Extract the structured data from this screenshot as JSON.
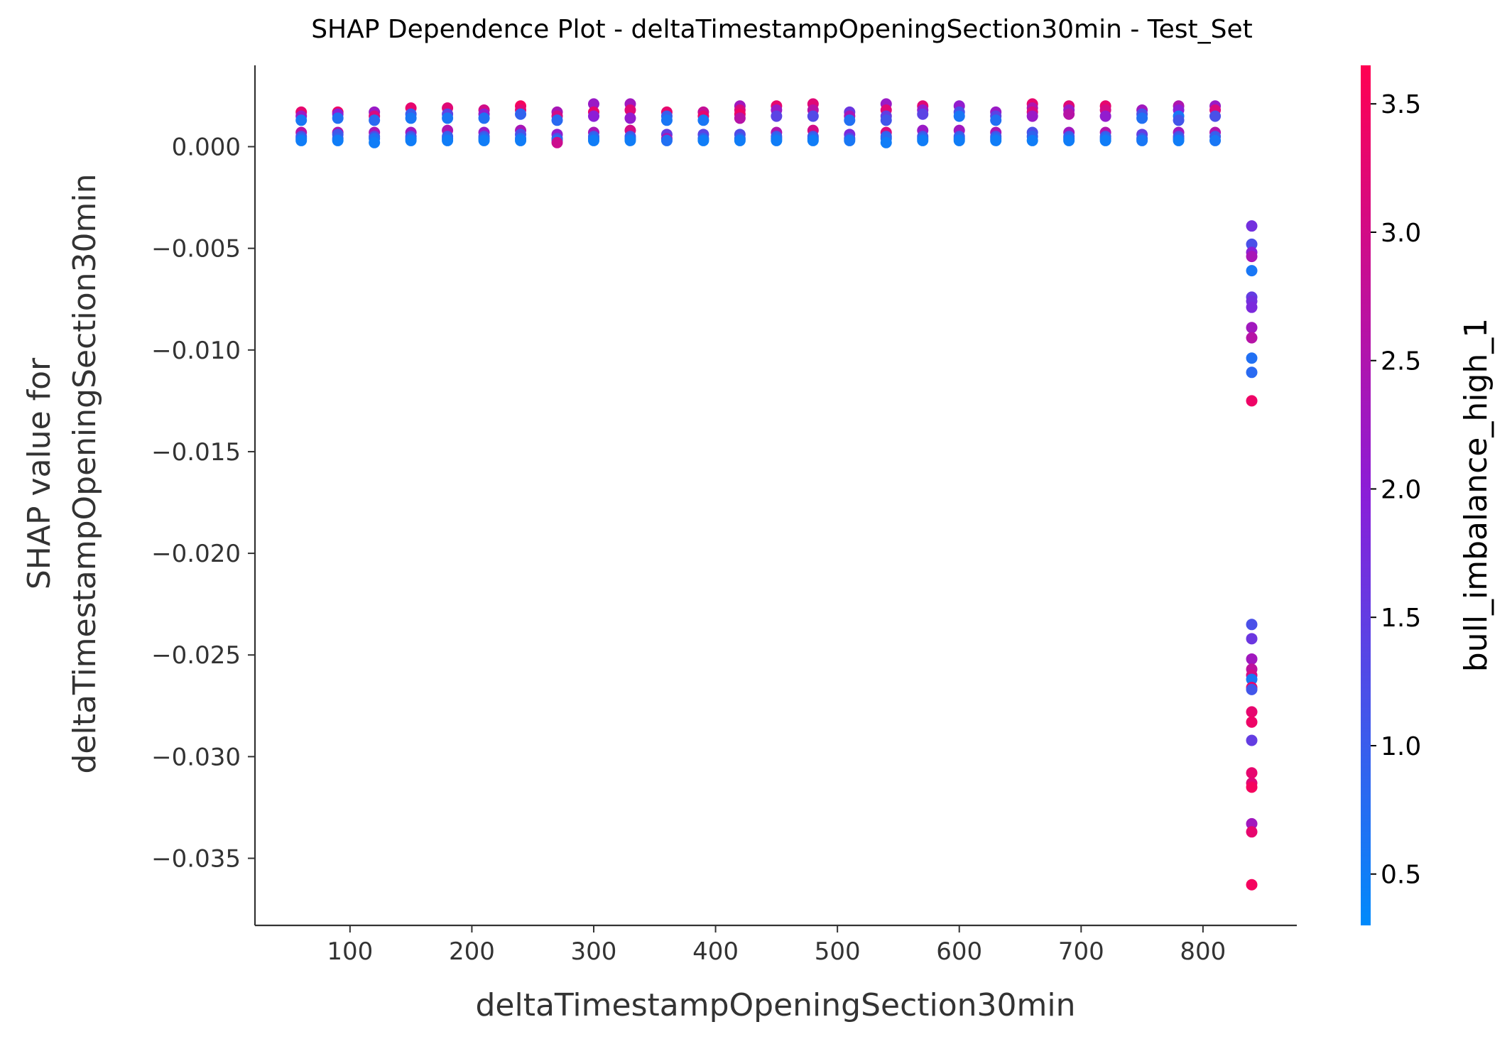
{
  "chart_data": {
    "type": "scatter",
    "title": "SHAP Dependence Plot - deltaTimestampOpeningSection30min - Test_Set",
    "xlabel": "deltaTimestampOpeningSection30min",
    "ylabel_line1": "SHAP value for",
    "ylabel_line2": "deltaTimestampOpeningSection30min",
    "colorbar_label": "bull_imbalance_high_1",
    "xlim": [
      22,
      877
    ],
    "ylim": [
      -0.0383,
      0.004
    ],
    "x_ticks": [
      100,
      200,
      300,
      400,
      500,
      600,
      700,
      800
    ],
    "x_tick_labels": [
      "100",
      "200",
      "300",
      "400",
      "500",
      "600",
      "700",
      "800"
    ],
    "y_ticks": [
      0.0,
      -0.005,
      -0.01,
      -0.015,
      -0.02,
      -0.025,
      -0.03,
      -0.035
    ],
    "y_tick_labels": [
      "0.000",
      "−0.005",
      "−0.010",
      "−0.015",
      "−0.020",
      "−0.025",
      "−0.030",
      "−0.035"
    ],
    "colorbar_range": [
      0.3,
      3.65
    ],
    "colorbar_ticks": [
      0.5,
      1.0,
      1.5,
      2.0,
      2.5,
      3.0,
      3.5
    ],
    "colorbar_tick_labels": [
      "0.5",
      "1.0",
      "1.5",
      "2.0",
      "2.5",
      "3.0",
      "3.5"
    ],
    "colormap": [
      "#008afb",
      "#ff0052"
    ],
    "grid": false,
    "points": [
      [
        60,
        0.0017,
        3.3
      ],
      [
        60,
        0.0015,
        2.2
      ],
      [
        60,
        0.0013,
        0.6
      ],
      [
        60,
        0.0007,
        2.6
      ],
      [
        60,
        0.0005,
        1.2
      ],
      [
        60,
        0.0004,
        0.8
      ],
      [
        60,
        0.0003,
        0.5
      ],
      [
        90,
        0.0017,
        3.4
      ],
      [
        90,
        0.0016,
        2.0
      ],
      [
        90,
        0.0014,
        0.7
      ],
      [
        90,
        0.0007,
        2.5
      ],
      [
        90,
        0.0006,
        1.1
      ],
      [
        90,
        0.0004,
        0.9
      ],
      [
        90,
        0.0003,
        0.5
      ],
      [
        120,
        0.0017,
        2.2
      ],
      [
        120,
        0.0015,
        3.1
      ],
      [
        120,
        0.0013,
        0.8
      ],
      [
        120,
        0.0007,
        2.4
      ],
      [
        120,
        0.0005,
        1.3
      ],
      [
        120,
        0.0004,
        0.7
      ],
      [
        120,
        0.0002,
        0.5
      ],
      [
        150,
        0.0019,
        3.3
      ],
      [
        150,
        0.0016,
        1.0
      ],
      [
        150,
        0.0014,
        0.6
      ],
      [
        150,
        0.0007,
        2.3
      ],
      [
        150,
        0.0005,
        1.2
      ],
      [
        150,
        0.0004,
        0.8
      ],
      [
        150,
        0.0003,
        0.5
      ],
      [
        180,
        0.0019,
        3.2
      ],
      [
        180,
        0.0016,
        1.4
      ],
      [
        180,
        0.0014,
        0.6
      ],
      [
        180,
        0.0008,
        2.5
      ],
      [
        180,
        0.0005,
        1.0
      ],
      [
        180,
        0.0004,
        0.8
      ],
      [
        180,
        0.0003,
        0.5
      ],
      [
        210,
        0.0018,
        3.0
      ],
      [
        210,
        0.0016,
        2.1
      ],
      [
        210,
        0.0014,
        0.7
      ],
      [
        210,
        0.0007,
        2.2
      ],
      [
        210,
        0.0005,
        1.1
      ],
      [
        210,
        0.0004,
        0.8
      ],
      [
        210,
        0.0003,
        0.5
      ],
      [
        240,
        0.002,
        3.5
      ],
      [
        240,
        0.0018,
        3.2
      ],
      [
        240,
        0.0016,
        0.9
      ],
      [
        240,
        0.0008,
        2.4
      ],
      [
        240,
        0.0006,
        1.2
      ],
      [
        240,
        0.0004,
        0.7
      ],
      [
        240,
        0.0003,
        0.5
      ],
      [
        270,
        0.0017,
        2.4
      ],
      [
        270,
        0.0015,
        3.0
      ],
      [
        270,
        0.0013,
        0.8
      ],
      [
        270,
        0.0006,
        2.1
      ],
      [
        270,
        0.0004,
        1.2
      ],
      [
        270,
        0.0003,
        0.7
      ],
      [
        270,
        0.0002,
        2.9
      ],
      [
        300,
        0.0021,
        2.2
      ],
      [
        300,
        0.0017,
        3.3
      ],
      [
        300,
        0.0015,
        2.0
      ],
      [
        300,
        0.0007,
        2.4
      ],
      [
        300,
        0.0005,
        1.0
      ],
      [
        300,
        0.0004,
        0.8
      ],
      [
        300,
        0.0003,
        0.5
      ],
      [
        330,
        0.0021,
        2.3
      ],
      [
        330,
        0.0018,
        3.2
      ],
      [
        330,
        0.0014,
        2.1
      ],
      [
        330,
        0.0008,
        3.0
      ],
      [
        330,
        0.0005,
        1.1
      ],
      [
        330,
        0.0004,
        0.8
      ],
      [
        330,
        0.0003,
        0.5
      ],
      [
        360,
        0.0017,
        3.3
      ],
      [
        360,
        0.0015,
        1.0
      ],
      [
        360,
        0.0013,
        0.6
      ],
      [
        360,
        0.0006,
        1.5
      ],
      [
        360,
        0.0004,
        2.4
      ],
      [
        360,
        0.0003,
        0.7
      ],
      [
        390,
        0.0017,
        2.8
      ],
      [
        390,
        0.0015,
        3.3
      ],
      [
        390,
        0.0013,
        0.6
      ],
      [
        390,
        0.0006,
        1.4
      ],
      [
        390,
        0.0004,
        0.9
      ],
      [
        390,
        0.0003,
        0.5
      ],
      [
        420,
        0.002,
        2.3
      ],
      [
        420,
        0.0018,
        3.1
      ],
      [
        420,
        0.0016,
        3.4
      ],
      [
        420,
        0.0014,
        2.6
      ],
      [
        420,
        0.0006,
        1.3
      ],
      [
        420,
        0.0004,
        0.9
      ],
      [
        420,
        0.0003,
        0.5
      ],
      [
        450,
        0.002,
        3.3
      ],
      [
        450,
        0.0018,
        2.2
      ],
      [
        450,
        0.0015,
        1.4
      ],
      [
        450,
        0.0007,
        2.5
      ],
      [
        450,
        0.0005,
        1.0
      ],
      [
        450,
        0.0004,
        0.8
      ],
      [
        450,
        0.0003,
        0.5
      ],
      [
        480,
        0.0021,
        3.2
      ],
      [
        480,
        0.0018,
        2.6
      ],
      [
        480,
        0.0015,
        1.3
      ],
      [
        480,
        0.0008,
        3.0
      ],
      [
        480,
        0.0005,
        1.1
      ],
      [
        480,
        0.0004,
        0.8
      ],
      [
        480,
        0.0003,
        0.5
      ],
      [
        510,
        0.0017,
        1.6
      ],
      [
        510,
        0.0015,
        2.4
      ],
      [
        510,
        0.0013,
        0.7
      ],
      [
        510,
        0.0006,
        1.8
      ],
      [
        510,
        0.0004,
        1.2
      ],
      [
        510,
        0.0003,
        0.6
      ],
      [
        540,
        0.0021,
        2.2
      ],
      [
        540,
        0.0018,
        3.2
      ],
      [
        540,
        0.0015,
        1.5
      ],
      [
        540,
        0.0013,
        1.1
      ],
      [
        540,
        0.0007,
        3.1
      ],
      [
        540,
        0.0005,
        1.0
      ],
      [
        540,
        0.0004,
        0.8
      ],
      [
        540,
        0.0002,
        0.5
      ],
      [
        570,
        0.002,
        3.2
      ],
      [
        570,
        0.0018,
        2.1
      ],
      [
        570,
        0.0016,
        1.4
      ],
      [
        570,
        0.0008,
        2.2
      ],
      [
        570,
        0.0005,
        1.1
      ],
      [
        570,
        0.0004,
        0.8
      ],
      [
        570,
        0.0003,
        0.5
      ],
      [
        600,
        0.002,
        2.1
      ],
      [
        600,
        0.0017,
        1.2
      ],
      [
        600,
        0.0015,
        0.6
      ],
      [
        600,
        0.0008,
        2.3
      ],
      [
        600,
        0.0005,
        1.0
      ],
      [
        600,
        0.0004,
        0.8
      ],
      [
        600,
        0.0003,
        0.5
      ],
      [
        630,
        0.0017,
        2.2
      ],
      [
        630,
        0.0015,
        1.4
      ],
      [
        630,
        0.0013,
        0.7
      ],
      [
        630,
        0.0007,
        2.4
      ],
      [
        630,
        0.0005,
        1.1
      ],
      [
        630,
        0.0004,
        0.8
      ],
      [
        630,
        0.0003,
        0.5
      ],
      [
        660,
        0.0021,
        3.3
      ],
      [
        660,
        0.0019,
        2.5
      ],
      [
        660,
        0.0017,
        3.1
      ],
      [
        660,
        0.0015,
        2.2
      ],
      [
        660,
        0.0007,
        1.2
      ],
      [
        660,
        0.0005,
        0.9
      ],
      [
        660,
        0.0003,
        0.5
      ],
      [
        690,
        0.002,
        3.2
      ],
      [
        690,
        0.0018,
        2.2
      ],
      [
        690,
        0.0016,
        2.6
      ],
      [
        690,
        0.0007,
        2.3
      ],
      [
        690,
        0.0005,
        1.0
      ],
      [
        690,
        0.0004,
        0.8
      ],
      [
        690,
        0.0003,
        0.5
      ],
      [
        720,
        0.002,
        3.3
      ],
      [
        720,
        0.0018,
        3.0
      ],
      [
        720,
        0.0015,
        2.1
      ],
      [
        720,
        0.0007,
        2.5
      ],
      [
        720,
        0.0005,
        1.0
      ],
      [
        720,
        0.0004,
        0.8
      ],
      [
        720,
        0.0003,
        0.5
      ],
      [
        750,
        0.0018,
        2.3
      ],
      [
        750,
        0.0016,
        1.2
      ],
      [
        750,
        0.0014,
        0.7
      ],
      [
        750,
        0.0006,
        1.5
      ],
      [
        750,
        0.0004,
        1.0
      ],
      [
        750,
        0.0003,
        0.6
      ],
      [
        780,
        0.002,
        2.5
      ],
      [
        780,
        0.0018,
        2.0
      ],
      [
        780,
        0.0015,
        0.6
      ],
      [
        780,
        0.0013,
        1.1
      ],
      [
        780,
        0.0007,
        2.3
      ],
      [
        780,
        0.0005,
        1.2
      ],
      [
        780,
        0.0004,
        0.9
      ],
      [
        780,
        0.0003,
        0.5
      ],
      [
        810,
        0.002,
        2.2
      ],
      [
        810,
        0.0018,
        3.1
      ],
      [
        810,
        0.0015,
        1.2
      ],
      [
        810,
        0.0007,
        2.5
      ],
      [
        810,
        0.0005,
        1.0
      ],
      [
        810,
        0.0003,
        0.6
      ],
      [
        840,
        -0.0039,
        1.7
      ],
      [
        840,
        -0.0048,
        1.2
      ],
      [
        840,
        -0.0052,
        2.0
      ],
      [
        840,
        -0.0054,
        2.4
      ],
      [
        840,
        -0.0061,
        0.6
      ],
      [
        840,
        -0.0074,
        1.5
      ],
      [
        840,
        -0.0076,
        1.7
      ],
      [
        840,
        -0.0079,
        1.8
      ],
      [
        840,
        -0.0089,
        2.3
      ],
      [
        840,
        -0.0094,
        2.6
      ],
      [
        840,
        -0.0104,
        0.7
      ],
      [
        840,
        -0.0111,
        0.8
      ],
      [
        840,
        -0.0125,
        3.4
      ],
      [
        840,
        -0.0235,
        1.2
      ],
      [
        840,
        -0.0242,
        1.6
      ],
      [
        840,
        -0.0252,
        2.3
      ],
      [
        840,
        -0.0257,
        2.7
      ],
      [
        840,
        -0.026,
        3.0
      ],
      [
        840,
        -0.0262,
        0.6
      ],
      [
        840,
        -0.0266,
        3.3
      ],
      [
        840,
        -0.0267,
        1.1
      ],
      [
        840,
        -0.0278,
        3.3
      ],
      [
        840,
        -0.0283,
        3.4
      ],
      [
        840,
        -0.0292,
        1.5
      ],
      [
        840,
        -0.0308,
        3.3
      ],
      [
        840,
        -0.0313,
        3.2
      ],
      [
        840,
        -0.0315,
        3.5
      ],
      [
        840,
        -0.0333,
        2.3
      ],
      [
        840,
        -0.0337,
        3.3
      ],
      [
        840,
        -0.0363,
        3.5
      ]
    ]
  }
}
